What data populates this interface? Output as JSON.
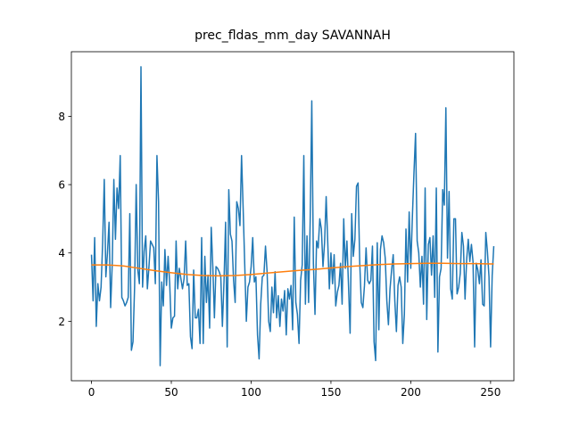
{
  "chart_data": {
    "type": "line",
    "title": "prec_fldas_mm_day SAVANNAH",
    "xlim": [
      -12.6,
      264.6
    ],
    "ylim": [
      0.26,
      9.89
    ],
    "xticks": [
      0,
      50,
      100,
      150,
      200,
      250
    ],
    "yticks": [
      2,
      4,
      6,
      8
    ],
    "grid": false,
    "series": [
      {
        "color": "#1f77b4",
        "x": [
          0,
          1,
          2,
          3,
          4,
          5,
          6,
          7,
          8,
          9,
          10,
          11,
          12,
          13,
          14,
          15,
          16,
          17,
          18,
          19,
          20,
          21,
          22,
          23,
          24,
          25,
          26,
          27,
          28,
          29,
          30,
          31,
          32,
          33,
          34,
          35,
          36,
          37,
          38,
          39,
          40,
          41,
          42,
          43,
          44,
          45,
          46,
          47,
          48,
          49,
          50,
          51,
          52,
          53,
          54,
          55,
          56,
          57,
          58,
          59,
          60,
          61,
          62,
          63,
          64,
          65,
          66,
          67,
          68,
          69,
          70,
          71,
          72,
          73,
          74,
          75,
          76,
          77,
          78,
          79,
          80,
          81,
          82,
          83,
          84,
          85,
          86,
          87,
          88,
          89,
          90,
          91,
          92,
          93,
          94,
          95,
          96,
          97,
          98,
          99,
          100,
          101,
          102,
          103,
          104,
          105,
          106,
          107,
          108,
          109,
          110,
          111,
          112,
          113,
          114,
          115,
          116,
          117,
          118,
          119,
          120,
          121,
          122,
          123,
          124,
          125,
          126,
          127,
          128,
          129,
          130,
          131,
          132,
          133,
          134,
          135,
          136,
          137,
          138,
          139,
          140,
          141,
          142,
          143,
          144,
          145,
          146,
          147,
          148,
          149,
          150,
          151,
          152,
          153,
          154,
          155,
          156,
          157,
          158,
          159,
          160,
          161,
          162,
          163,
          164,
          165,
          166,
          167,
          168,
          169,
          170,
          171,
          172,
          173,
          174,
          175,
          176,
          177,
          178,
          179,
          180,
          181,
          182,
          183,
          184,
          185,
          186,
          187,
          188,
          189,
          190,
          191,
          192,
          193,
          194,
          195,
          196,
          197,
          198,
          199,
          200,
          201,
          202,
          203,
          204,
          205,
          206,
          207,
          208,
          209,
          210,
          211,
          212,
          213,
          214,
          215,
          216,
          217,
          218,
          219,
          220,
          221,
          222,
          223,
          224,
          225,
          226,
          227,
          228,
          229,
          230,
          231,
          232,
          233,
          234,
          235,
          236,
          237,
          238,
          239,
          240,
          241,
          242,
          243,
          244,
          245,
          246,
          247,
          248,
          249,
          250,
          251,
          252
        ],
        "values": [
          3.95,
          2.6,
          4.45,
          1.85,
          3.1,
          2.6,
          3.0,
          4.3,
          6.15,
          3.3,
          4.0,
          4.9,
          2.4,
          3.7,
          6.15,
          4.4,
          5.9,
          5.3,
          6.85,
          2.7,
          2.6,
          2.45,
          2.55,
          2.7,
          5.15,
          1.15,
          1.4,
          3.0,
          6.0,
          3.5,
          3.1,
          9.45,
          3.0,
          4.05,
          4.5,
          2.95,
          3.6,
          4.35,
          4.25,
          4.15,
          3.1,
          6.85,
          5.5,
          0.7,
          3.15,
          2.45,
          4.1,
          3.05,
          3.9,
          3.1,
          1.8,
          2.1,
          2.15,
          4.35,
          2.95,
          3.55,
          3.25,
          2.95,
          3.25,
          4.35,
          3.05,
          3.1,
          1.55,
          1.2,
          3.5,
          2.1,
          2.1,
          2.35,
          1.35,
          4.45,
          1.35,
          3.9,
          2.55,
          3.35,
          1.8,
          4.75,
          3.6,
          2.1,
          3.6,
          3.55,
          3.45,
          3.3,
          1.85,
          3.15,
          4.9,
          1.25,
          5.85,
          4.55,
          4.35,
          3.2,
          2.55,
          5.5,
          5.3,
          4.8,
          6.85,
          5.3,
          3.65,
          2.0,
          3.0,
          3.15,
          3.6,
          4.45,
          3.15,
          3.3,
          1.6,
          0.9,
          2.5,
          3.3,
          3.35,
          4.2,
          3.45,
          2.0,
          1.7,
          3.0,
          2.25,
          3.45,
          2.1,
          2.75,
          1.85,
          2.65,
          2.3,
          2.9,
          1.6,
          2.95,
          2.65,
          3.05,
          1.75,
          5.05,
          2.55,
          2.2,
          1.35,
          3.2,
          3.65,
          6.85,
          2.5,
          4.5,
          2.55,
          4.95,
          8.45,
          3.7,
          2.2,
          4.35,
          4.15,
          5.0,
          4.7,
          3.6,
          4.3,
          5.65,
          4.3,
          2.95,
          4.0,
          3.1,
          3.95,
          2.45,
          2.85,
          3.05,
          3.7,
          2.5,
          5.0,
          3.55,
          4.35,
          3.05,
          1.65,
          5.15,
          3.9,
          4.4,
          5.95,
          6.05,
          3.75,
          2.55,
          2.4,
          3.05,
          4.15,
          3.2,
          3.1,
          3.2,
          4.2,
          1.4,
          0.85,
          4.3,
          1.75,
          4.1,
          4.5,
          4.3,
          3.85,
          2.6,
          1.9,
          2.95,
          3.5,
          3.95,
          2.6,
          1.7,
          3.05,
          3.3,
          3.0,
          1.35,
          2.2,
          4.7,
          3.15,
          5.2,
          3.55,
          5.05,
          6.35,
          7.5,
          4.35,
          4.0,
          3.0,
          3.9,
          2.5,
          5.9,
          2.05,
          4.25,
          4.45,
          3.35,
          4.5,
          2.7,
          5.9,
          1.1,
          3.3,
          3.55,
          5.85,
          5.4,
          8.25,
          3.85,
          5.8,
          2.95,
          2.65,
          5.0,
          5.0,
          2.8,
          3.0,
          3.4,
          4.6,
          4.2,
          2.65,
          3.8,
          4.4,
          3.75,
          4.25,
          3.75,
          1.25,
          3.7,
          3.5,
          3.1,
          3.8,
          2.5,
          2.45,
          4.6,
          4.05,
          3.3,
          1.25,
          3.35,
          4.2
        ]
      },
      {
        "color": "#ff7f0e",
        "x": [
          0,
          10,
          20,
          30,
          40,
          50,
          60,
          70,
          80,
          90,
          100,
          110,
          120,
          130,
          140,
          150,
          160,
          170,
          180,
          190,
          200,
          210,
          220,
          230,
          240,
          250,
          252
        ],
        "values": [
          3.65,
          3.65,
          3.62,
          3.55,
          3.48,
          3.42,
          3.37,
          3.34,
          3.33,
          3.34,
          3.37,
          3.41,
          3.45,
          3.49,
          3.52,
          3.56,
          3.6,
          3.63,
          3.66,
          3.68,
          3.69,
          3.7,
          3.7,
          3.69,
          3.69,
          3.68,
          3.68
        ]
      }
    ]
  }
}
